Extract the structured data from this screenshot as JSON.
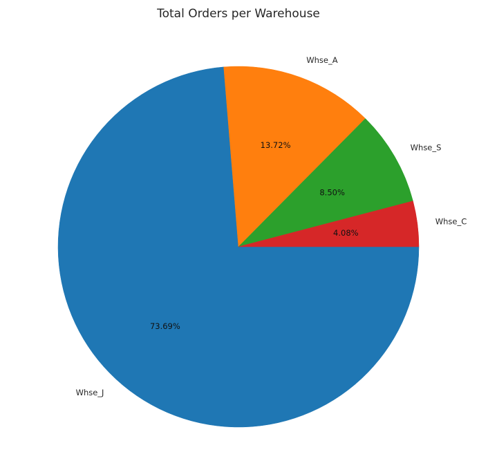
{
  "chart_data": {
    "type": "pie",
    "title": "Total Orders per Warehouse",
    "start_angle_deg": 0,
    "direction": "clockwise",
    "slices": [
      {
        "label": "Whse_J",
        "percent_label": "73.69%",
        "value": 73.69,
        "color": "#1f77b4"
      },
      {
        "label": "Whse_A",
        "percent_label": "13.72%",
        "value": 13.72,
        "color": "#ff7f0e"
      },
      {
        "label": "Whse_S",
        "percent_label": "8.50%",
        "value": 8.5,
        "color": "#2ca02c"
      },
      {
        "label": "Whse_C",
        "percent_label": "4.08%",
        "value": 4.08,
        "color": "#d62728"
      }
    ]
  }
}
